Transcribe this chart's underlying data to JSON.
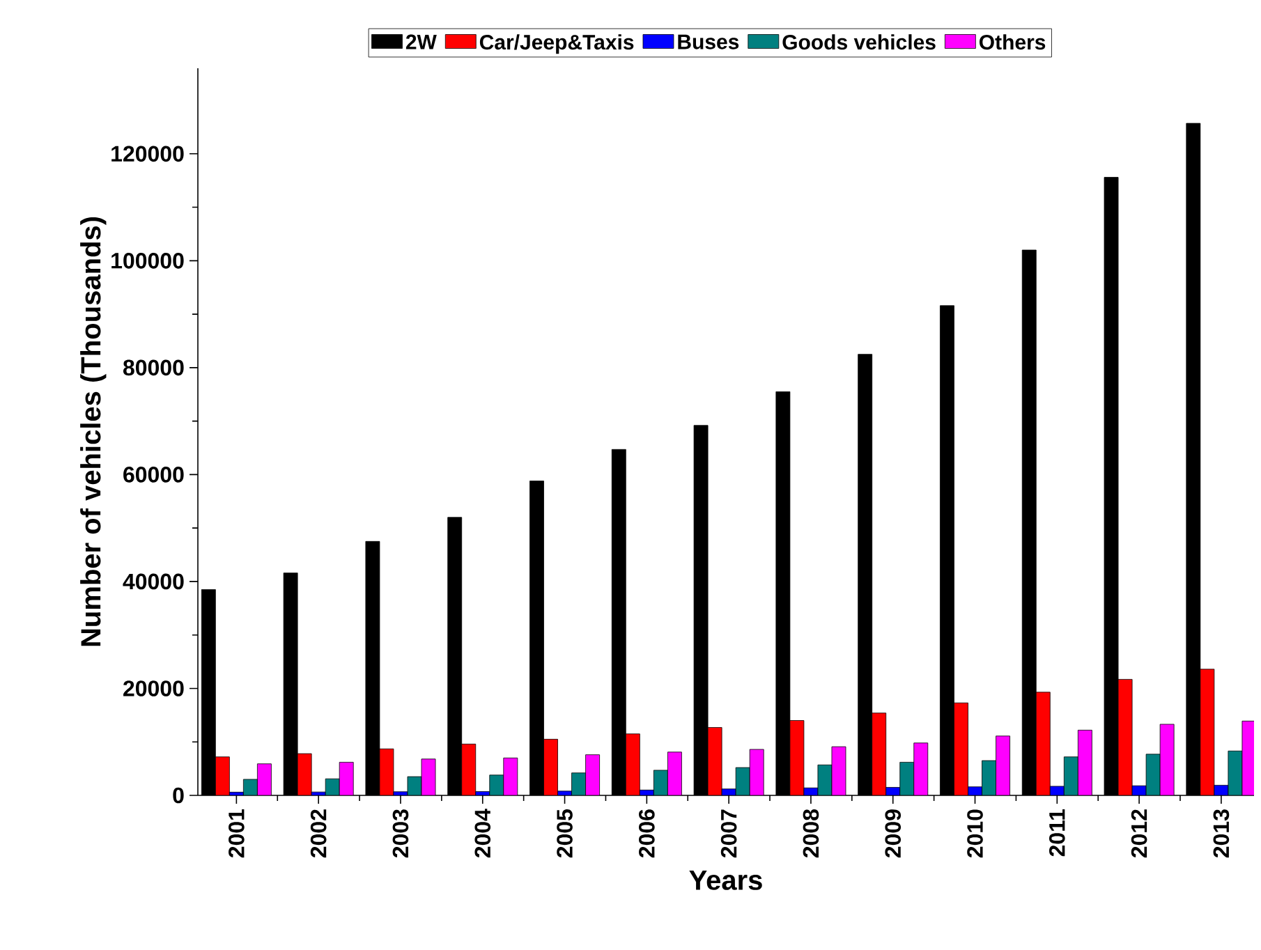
{
  "chart_data": {
    "type": "bar",
    "xlabel": "Years",
    "ylabel": "Number of vehicles (Thousands)",
    "categories": [
      "2001",
      "2002",
      "2003",
      "2004",
      "2005",
      "2006",
      "2007",
      "2008",
      "2009",
      "2010",
      "2011",
      "2012",
      "2013"
    ],
    "series": [
      {
        "name": "2W",
        "color": "#000000",
        "values": [
          38500,
          41600,
          47500,
          52000,
          58800,
          64700,
          69200,
          75500,
          82500,
          91600,
          102000,
          115600,
          125700
        ]
      },
      {
        "name": "Car/Jeep&Taxis",
        "color": "#ff0000",
        "values": [
          7200,
          7800,
          8700,
          9600,
          10500,
          11500,
          12700,
          14000,
          15400,
          17300,
          19300,
          21700,
          23600
        ]
      },
      {
        "name": "Buses",
        "color": "#0000ff",
        "values": [
          600,
          630,
          680,
          720,
          800,
          1000,
          1200,
          1400,
          1500,
          1600,
          1700,
          1800,
          1900
        ]
      },
      {
        "name": "Goods vehicles",
        "color": "#008080",
        "values": [
          3000,
          3100,
          3500,
          3800,
          4200,
          4700,
          5200,
          5700,
          6200,
          6500,
          7200,
          7700,
          8300
        ]
      },
      {
        "name": "Others",
        "color": "#ff00ff",
        "values": [
          5900,
          6200,
          6800,
          7000,
          7600,
          8100,
          8600,
          9100,
          9800,
          11100,
          12200,
          13300,
          13900
        ]
      }
    ],
    "ylim": [
      0,
      136000
    ],
    "yticks": [
      0,
      20000,
      40000,
      60000,
      80000,
      100000,
      120000
    ],
    "grid": false,
    "legend": "top"
  }
}
